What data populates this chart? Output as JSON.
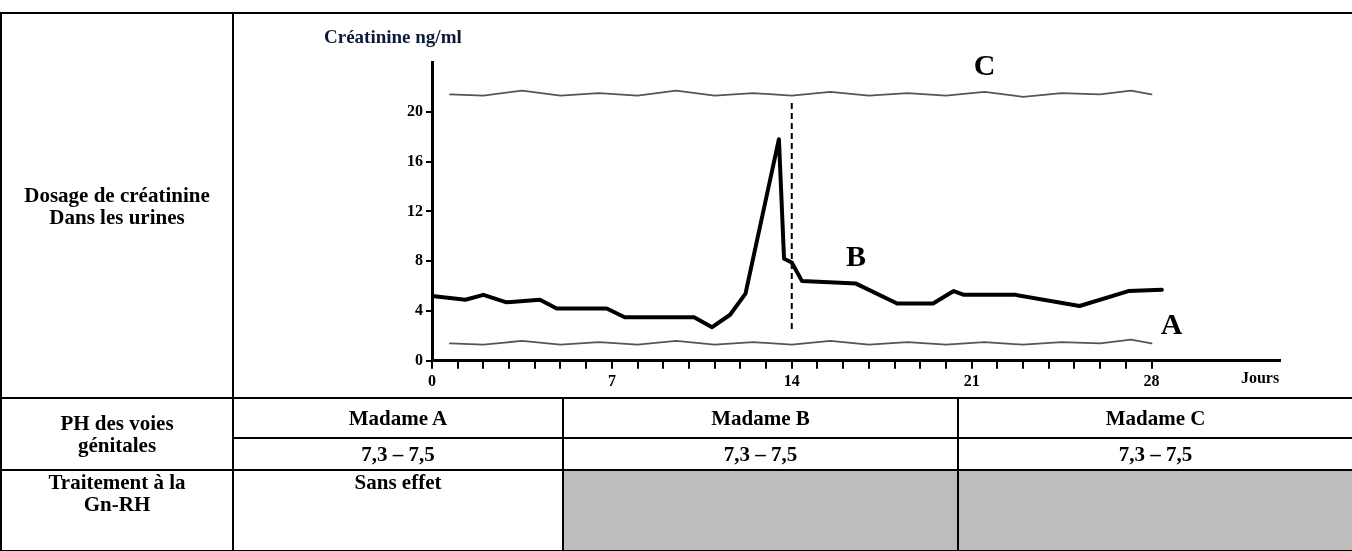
{
  "chart_data": {
    "type": "line",
    "ylabel": "Créatinine ng/ml",
    "xlabel": "Jours",
    "xlim": [
      0,
      33
    ],
    "ylim": [
      0,
      24
    ],
    "xticks": [
      0,
      {
        "value": 1,
        "label": null
      },
      {
        "value": 2,
        "label": null
      },
      {
        "value": 3,
        "label": null
      },
      {
        "value": 4,
        "label": null
      },
      {
        "value": 5,
        "label": null
      },
      {
        "value": 6,
        "label": null
      },
      7,
      {
        "value": 8,
        "label": null
      },
      {
        "value": 9,
        "label": null
      },
      {
        "value": 10,
        "label": null
      },
      {
        "value": 11,
        "label": null
      },
      {
        "value": 12,
        "label": null
      },
      {
        "value": 13,
        "label": null
      },
      14,
      {
        "value": 15,
        "label": null
      },
      {
        "value": 16,
        "label": null
      },
      {
        "value": 17,
        "label": null
      },
      {
        "value": 18,
        "label": null
      },
      {
        "value": 19,
        "label": null
      },
      {
        "value": 20,
        "label": null
      },
      21,
      {
        "value": 22,
        "label": null
      },
      {
        "value": 23,
        "label": null
      },
      {
        "value": 24,
        "label": null
      },
      {
        "value": 25,
        "label": null
      },
      {
        "value": 26,
        "label": null
      },
      {
        "value": 27,
        "label": null
      },
      28
    ],
    "yticks": [
      0,
      4,
      8,
      12,
      16,
      20
    ],
    "grid": false,
    "legend": false,
    "marker": "none",
    "line_style": "solid",
    "series": [
      {
        "name": "A",
        "color": "#555555",
        "x": [
          0.7,
          2,
          3.5,
          5,
          6.5,
          8,
          9.5,
          11,
          12.5,
          14,
          15.5,
          17,
          18.5,
          20,
          21.5,
          23,
          24.5,
          26,
          27.2,
          28
        ],
        "values": [
          1.4,
          1.3,
          1.6,
          1.3,
          1.5,
          1.3,
          1.6,
          1.3,
          1.5,
          1.3,
          1.6,
          1.3,
          1.5,
          1.3,
          1.5,
          1.3,
          1.5,
          1.4,
          1.7,
          1.4
        ]
      },
      {
        "name": "B",
        "color": "#000000",
        "x": [
          0,
          1.3,
          2,
          2.9,
          4.2,
          4.85,
          6.8,
          7.5,
          10.2,
          10.9,
          11.6,
          12.2,
          13.5,
          13.7,
          14,
          14.4,
          16.5,
          18.1,
          19.5,
          20.3,
          20.7,
          22.7,
          25.2,
          27.1,
          28.4
        ],
        "values": [
          5.2,
          4.9,
          5.3,
          4.7,
          4.9,
          4.2,
          4.2,
          3.5,
          3.5,
          2.7,
          3.7,
          5.4,
          17.8,
          8.2,
          7.9,
          6.4,
          6.2,
          4.6,
          4.6,
          5.6,
          5.3,
          5.3,
          4.4,
          5.6,
          5.7
        ]
      },
      {
        "name": "C",
        "color": "#555555",
        "x": [
          0.7,
          2,
          3.5,
          5,
          6.5,
          8,
          9.5,
          11,
          12.5,
          14,
          15.5,
          17,
          18.5,
          20,
          21.5,
          23,
          24.5,
          26,
          27.2,
          28
        ],
        "values": [
          21.4,
          21.3,
          21.7,
          21.3,
          21.5,
          21.3,
          21.7,
          21.3,
          21.5,
          21.3,
          21.6,
          21.3,
          21.5,
          21.3,
          21.6,
          21.2,
          21.5,
          21.4,
          21.7,
          21.4
        ]
      }
    ],
    "ref_lines": [
      {
        "axis": "x",
        "value": 14,
        "line_style": "dashed",
        "color": "#000000"
      }
    ],
    "annotations": [
      "Dosage de créatinine\nDans les urines",
      "PH des voies génitales",
      "Madame A",
      "Madame B",
      "Madame C",
      "7,3 – 7,5",
      "7,3 – 7,5",
      "7,3 – 7,5",
      "Traitement à la Gn-RH",
      "Sans effet"
    ]
  }
}
